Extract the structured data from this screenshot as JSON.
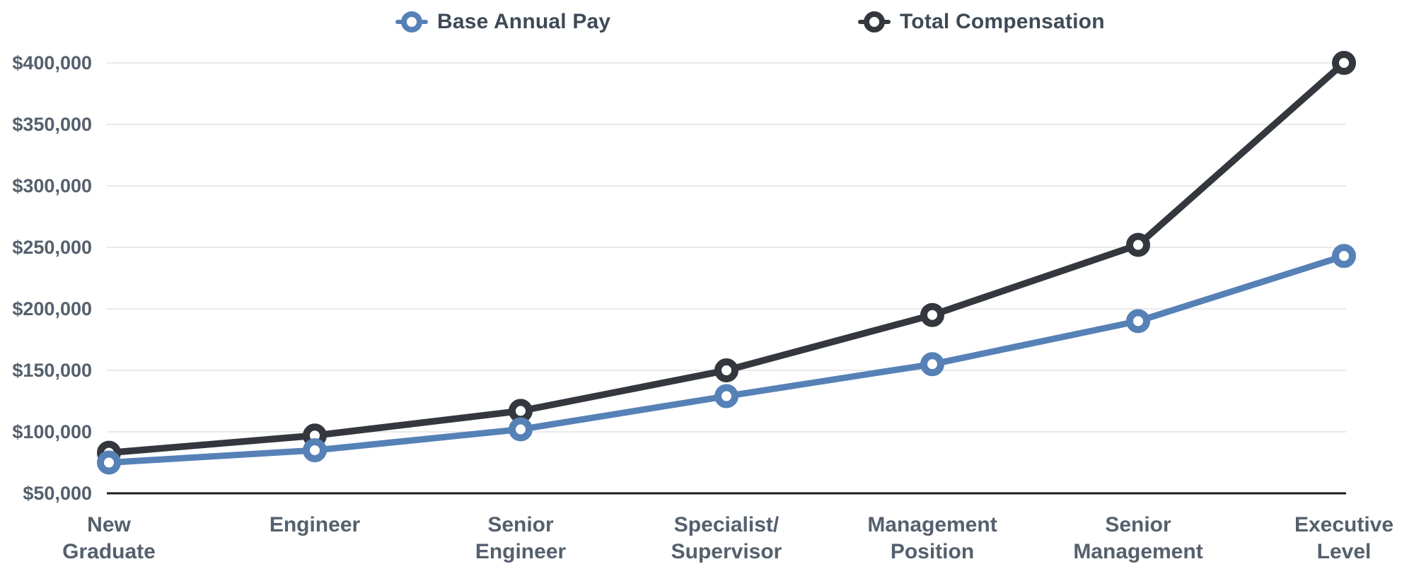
{
  "chart_data": {
    "type": "line",
    "title": "",
    "categories": [
      "New Graduate",
      "Engineer",
      "Senior Engineer",
      "Specialist/Supervisor",
      "Management Position",
      "Senior Management",
      "Executive Level"
    ],
    "category_lines": [
      [
        "New",
        "Graduate"
      ],
      [
        "Engineer"
      ],
      [
        "Senior",
        "Engineer"
      ],
      [
        "Specialist/",
        "Supervisor"
      ],
      [
        "Management",
        "Position"
      ],
      [
        "Senior",
        "Management"
      ],
      [
        "Executive",
        "Level"
      ]
    ],
    "series": [
      {
        "name": "Base Annual Pay",
        "color": "#5681B7",
        "values": [
          75000,
          85000,
          102000,
          129000,
          155000,
          190000,
          243000
        ]
      },
      {
        "name": "Total Compensation",
        "color": "#34383E",
        "values": [
          83000,
          97000,
          117000,
          150000,
          195000,
          252000,
          400000
        ]
      }
    ],
    "ylim": [
      50000,
      400000
    ],
    "yticks": [
      {
        "value": 50000,
        "label": "$50,000"
      },
      {
        "value": 100000,
        "label": "$100,000"
      },
      {
        "value": 150000,
        "label": "$150,000"
      },
      {
        "value": 200000,
        "label": "$200,000"
      },
      {
        "value": 250000,
        "label": "$250,000"
      },
      {
        "value": 300000,
        "label": "$300,000"
      },
      {
        "value": 350000,
        "label": "$350,000"
      },
      {
        "value": 400000,
        "label": "$400,000"
      }
    ],
    "grid": "horizontal",
    "legend_position": "top"
  },
  "colors": {
    "background": "#FFFFFF",
    "grid": "#E3E3E3",
    "axis_line": "#1A1C20",
    "axis_text": "#55606D",
    "legend_text": "#3F4A57",
    "marker_fill": "#FFFFFF"
  }
}
